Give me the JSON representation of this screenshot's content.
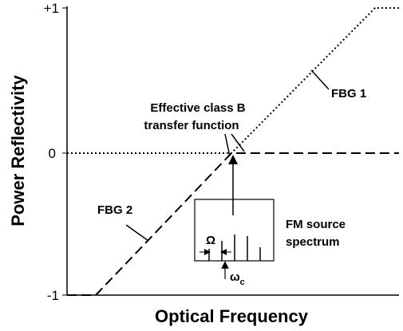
{
  "axes": {
    "y_label": "Power Reflectivity",
    "x_label": "Optical Frequency",
    "y_ticks": [
      "+1",
      "0",
      "-1"
    ]
  },
  "annotations": {
    "transfer_line1": "Effective class B",
    "transfer_line2": "transfer function",
    "fbg1": "FBG 1",
    "fbg2": "FBG 2",
    "source_line1": "FM source",
    "source_line2": "spectrum",
    "spacing": "Ω",
    "carrier": "ω",
    "carrier_sub": "c"
  }
}
